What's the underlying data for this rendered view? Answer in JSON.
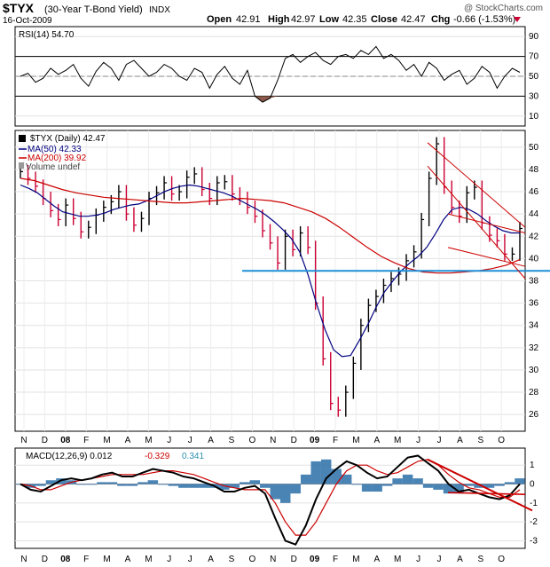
{
  "header": {
    "symbol": "$TYX",
    "name": "(30-Year T-Bond Yield)",
    "exchange": "INDX",
    "date": "16-Oct-2009",
    "watermark": "@ StockCharts.com",
    "open_label": "Open",
    "open": "42.91",
    "high_label": "High",
    "high": "42.97",
    "low_label": "Low",
    "low": "42.35",
    "close_label": "Close",
    "close": "42.47",
    "chg_label": "Chg",
    "chg": "-0.66 (-1.53%)"
  },
  "colors": {
    "price_up": "#000000",
    "price_down": "#cc0033",
    "ma50": "#000080",
    "ma200": "#cc0000",
    "support": "#1f8fd6",
    "trend": "#cc0000",
    "macd_hist": "#2a6fa8",
    "rsi_fill_low": "#8b5a4a"
  },
  "chart_data": [
    {
      "type": "line",
      "panel": "RSI",
      "legend": "RSI(14) 54.70",
      "ylim": [
        0,
        100
      ],
      "y_ticks": [
        10,
        30,
        50,
        70,
        90
      ],
      "ref_lines": [
        30,
        70
      ],
      "series": [
        {
          "name": "RSI(14)",
          "values": [
            50,
            53,
            44,
            48,
            58,
            52,
            56,
            62,
            48,
            40,
            55,
            64,
            58,
            46,
            62,
            66,
            58,
            50,
            54,
            62,
            58,
            50,
            46,
            58,
            54,
            38,
            52,
            60,
            48,
            42,
            56,
            30,
            24,
            28,
            46,
            68,
            72,
            64,
            70,
            74,
            66,
            62,
            70,
            72,
            68,
            76,
            72,
            80,
            68,
            72,
            66,
            56,
            62,
            50,
            64,
            58,
            46,
            52,
            56,
            42,
            48,
            60,
            54,
            38,
            50,
            58,
            54
          ]
        }
      ]
    },
    {
      "type": "line",
      "panel": "Price",
      "legend": [
        {
          "text": "$TYX (Daily) 42.47"
        },
        {
          "text": "MA(50) 42.33"
        },
        {
          "text": "MA(200) 39.92"
        },
        {
          "text": "Volume undef"
        }
      ],
      "ylim": [
        24.5,
        51.5
      ],
      "y_ticks": [
        26,
        28,
        30,
        32,
        34,
        36,
        38,
        40,
        42,
        44,
        46,
        48,
        50
      ],
      "x_ticks": [
        "N",
        "D",
        "08",
        "F",
        "M",
        "A",
        "M",
        "J",
        "J",
        "A",
        "S",
        "O",
        "N",
        "D",
        "09",
        "F",
        "M",
        "A",
        "M",
        "J",
        "J",
        "A",
        "S",
        "O"
      ],
      "series": [
        {
          "name": "$TYX",
          "values": [
            47.8,
            47.2,
            46.5,
            45.4,
            44.3,
            43.5,
            44.8,
            43.6,
            42.4,
            42.8,
            43.9,
            44.6,
            45.1,
            46.0,
            44.0,
            43.0,
            43.6,
            45.4,
            45.9,
            46.8,
            45.8,
            46.0,
            47.3,
            47.6,
            46.2,
            45.4,
            46.8,
            46.9,
            45.8,
            45.4,
            44.6,
            43.8,
            42.5,
            41.4,
            39.6,
            42.0,
            40.8,
            42.3,
            41.0,
            36.0,
            31.0,
            27.0,
            26.4,
            28.0,
            30.6,
            34.0,
            35.8,
            36.6,
            37.6,
            38.2,
            38.6,
            39.8,
            40.6,
            43.5,
            47.2,
            50.3,
            46.4,
            44.6,
            43.8,
            45.9,
            46.4,
            43.2,
            42.1,
            41.6,
            40.4,
            40.4,
            42.7
          ]
        },
        {
          "name": "MA(50)",
          "values": [
            46.6,
            46.3,
            45.9,
            45.3,
            44.7,
            44.2,
            44.0,
            43.8,
            43.8,
            43.9,
            44.1,
            44.4,
            44.6,
            44.8,
            44.9,
            45.2,
            45.6,
            46.0,
            46.3,
            46.5,
            46.6,
            46.5,
            46.3,
            46.1,
            45.9,
            45.6,
            45.2,
            44.8,
            44.4,
            43.9,
            43.3,
            42.6,
            41.8,
            40.6,
            38.5,
            35.9,
            33.6,
            31.8,
            31.2,
            31.3,
            32.6,
            34.0,
            35.6,
            37.0,
            38.0,
            38.9,
            39.6,
            40.2,
            41.0,
            42.2,
            43.5,
            44.4,
            44.6,
            44.4,
            44.0,
            43.4,
            42.9,
            42.5,
            42.3,
            42.3
          ]
        },
        {
          "name": "MA(200)",
          "values": [
            47.2,
            47.0,
            46.6,
            46.2,
            45.9,
            45.7,
            45.5,
            45.4,
            45.3,
            45.2,
            45.1,
            45.0,
            45.0,
            45.1,
            45.2,
            45.3,
            45.4,
            45.3,
            45.2,
            45.0,
            44.6,
            44.2,
            43.6,
            42.8,
            41.9,
            41.0,
            40.2,
            39.6,
            39.1,
            38.8,
            38.7,
            38.7,
            38.8,
            38.9,
            39.1,
            39.4,
            39.9
          ]
        }
      ],
      "trendlines": [
        "support ~38.9",
        "falling channel Jun-Oct 2009"
      ]
    },
    {
      "type": "line",
      "panel": "MACD",
      "legend": [
        {
          "text": "MACD(12,26,9) 0.012"
        },
        {
          "text": "-0.329"
        },
        {
          "text": "0.341"
        }
      ],
      "ylim": [
        -3.4,
        1.9
      ],
      "y_ticks": [
        -3,
        -2,
        -1,
        0,
        1
      ],
      "x_ticks": [
        "N",
        "D",
        "08",
        "F",
        "M",
        "A",
        "M",
        "J",
        "J",
        "A",
        "S",
        "O",
        "N",
        "D",
        "09",
        "F",
        "M",
        "A",
        "M",
        "J",
        "J",
        "A",
        "S",
        "O"
      ],
      "series": [
        {
          "name": "MACD",
          "values": [
            0.0,
            -0.3,
            -0.4,
            -0.1,
            0.2,
            0.3,
            0.2,
            0.3,
            0.5,
            0.6,
            0.4,
            0.4,
            0.6,
            0.8,
            0.7,
            0.6,
            0.4,
            0.3,
            0.1,
            -0.1,
            -0.4,
            -0.4,
            -0.2,
            -0.1,
            -0.5,
            -1.8,
            -3.0,
            -3.2,
            -2.2,
            -0.8,
            0.3,
            0.8,
            1.2,
            1.0,
            0.6,
            0.3,
            0.4,
            0.9,
            1.4,
            1.5,
            1.1,
            0.7,
            0.0,
            -0.4,
            -0.3,
            -0.5,
            -0.7,
            -0.8,
            -0.6,
            0.0
          ]
        },
        {
          "name": "Signal",
          "values": [
            0.0,
            -0.1,
            -0.3,
            -0.3,
            -0.1,
            0.1,
            0.2,
            0.3,
            0.4,
            0.5,
            0.5,
            0.5,
            0.5,
            0.6,
            0.7,
            0.7,
            0.6,
            0.5,
            0.3,
            0.1,
            -0.1,
            -0.2,
            -0.3,
            -0.3,
            -0.3,
            -1.0,
            -2.0,
            -2.7,
            -2.7,
            -2.0,
            -1.0,
            0.0,
            0.7,
            1.0,
            1.0,
            0.7,
            0.5,
            0.6,
            0.9,
            1.2,
            1.3,
            1.0,
            0.5,
            0.1,
            -0.2,
            -0.3,
            -0.5,
            -0.7,
            -0.7,
            -0.3
          ]
        }
      ]
    }
  ]
}
